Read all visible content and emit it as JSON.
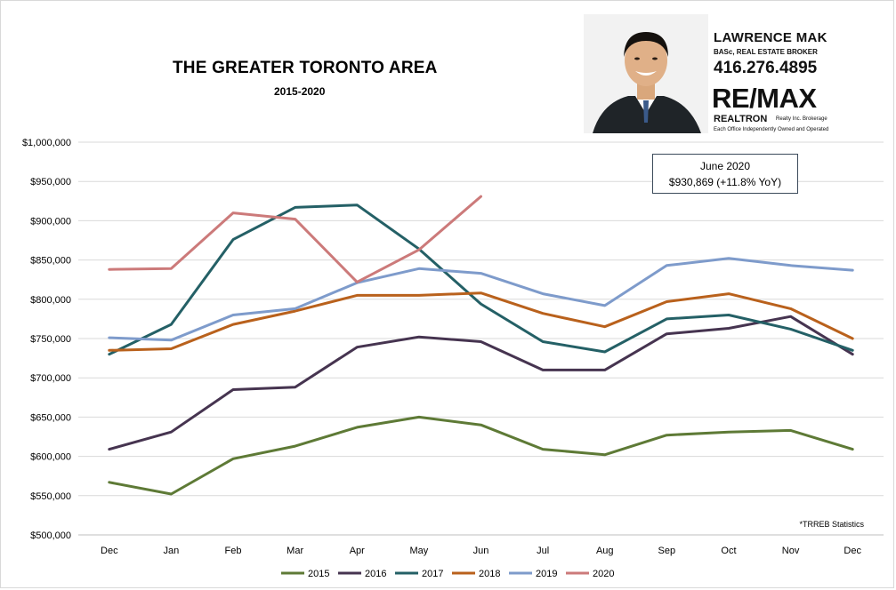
{
  "header": {
    "title": "THE GREATER TORONTO AREA",
    "subtitle": "2015-2020"
  },
  "callout": {
    "line1": "June 2020",
    "line2": "$930,869  (+11.8% YoY)"
  },
  "source_note": "*TRREB Statistics",
  "agent_card": {
    "name": "LAWRENCE MAK",
    "credentials": "BASc, REAL ESTATE BROKER",
    "phone": "416.276.4895",
    "brand": "RE/MAX",
    "brokerage": "REALTRON",
    "brokerage_suffix": "Realty Inc. Brokerage",
    "note": "Each Office Independently Owned and Operated"
  },
  "chart_data": {
    "type": "line",
    "categories": [
      "Dec",
      "Jan",
      "Feb",
      "Mar",
      "Apr",
      "May",
      "Jun",
      "Jul",
      "Aug",
      "Sep",
      "Oct",
      "Nov",
      "Dec"
    ],
    "ylim": [
      500000,
      1000000
    ],
    "yticks": [
      500000,
      550000,
      600000,
      650000,
      700000,
      750000,
      800000,
      850000,
      900000,
      950000,
      1000000
    ],
    "ytick_labels": [
      "$500,000",
      "$550,000",
      "$600,000",
      "$650,000",
      "$700,000",
      "$750,000",
      "$800,000",
      "$850,000",
      "$900,000",
      "$950,000",
      "$1,000,000"
    ],
    "grid": true,
    "legend_position": "bottom",
    "series": [
      {
        "name": "2015",
        "color": "#5e7a36",
        "values": [
          567000,
          552000,
          597000,
          613000,
          637000,
          650000,
          640000,
          609000,
          602000,
          627000,
          631000,
          633000,
          609000
        ]
      },
      {
        "name": "2016",
        "color": "#463450",
        "values": [
          609000,
          631000,
          685000,
          688000,
          739000,
          752000,
          746000,
          710000,
          710000,
          756000,
          763000,
          778000,
          730000
        ]
      },
      {
        "name": "2017",
        "color": "#246066",
        "values": [
          730000,
          768000,
          876000,
          917000,
          920000,
          864000,
          794000,
          746000,
          733000,
          775000,
          780000,
          762000,
          735000
        ]
      },
      {
        "name": "2018",
        "color": "#b9611c",
        "values": [
          735000,
          737000,
          768000,
          785000,
          805000,
          805000,
          808000,
          782000,
          765000,
          797000,
          807000,
          788000,
          750000
        ]
      },
      {
        "name": "2019",
        "color": "#7e9bcb",
        "values": [
          751000,
          748000,
          780000,
          788000,
          821000,
          839000,
          833000,
          807000,
          792000,
          843000,
          852000,
          843000,
          837000
        ]
      },
      {
        "name": "2020",
        "color": "#cc7a7a",
        "values": [
          838000,
          839000,
          910000,
          902000,
          822000,
          863000,
          930869,
          null,
          null,
          null,
          null,
          null,
          null
        ]
      }
    ]
  }
}
